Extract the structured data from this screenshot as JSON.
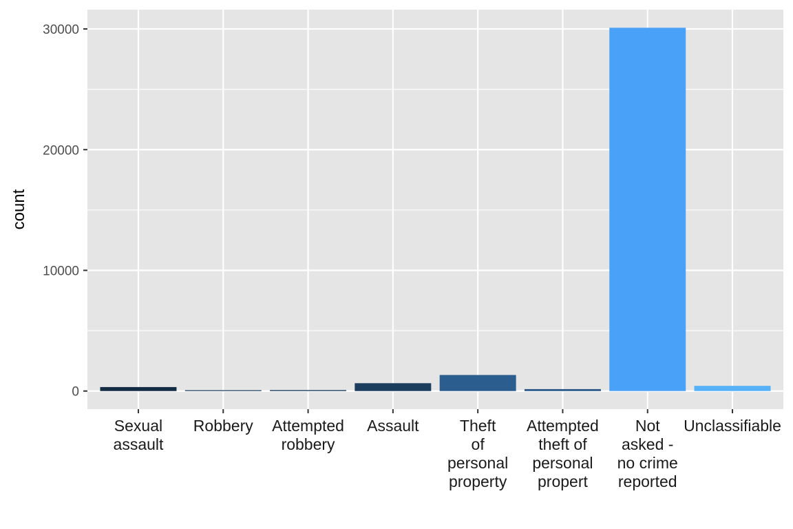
{
  "chart_data": {
    "type": "bar",
    "title": "",
    "xlabel": "",
    "ylabel": "count",
    "categories": [
      [
        "Sexual",
        "assault"
      ],
      [
        "Robbery"
      ],
      [
        "Attempted",
        "robbery"
      ],
      [
        "Assault"
      ],
      [
        "Theft",
        "of",
        "personal",
        "property"
      ],
      [
        "Attempted",
        "theft of",
        "personal",
        "propert"
      ],
      [
        "Not",
        "asked -",
        "no crime",
        "reported"
      ],
      [
        "Unclassifiable"
      ]
    ],
    "values": [
      330,
      70,
      80,
      650,
      1330,
      160,
      30100,
      430
    ],
    "colors": [
      "#132b43",
      "#1c3a5a",
      "#1e3f61",
      "#1d3d5e",
      "#2c5d8f",
      "#285686",
      "#4aa2f8",
      "#56b1f7"
    ],
    "ylim": [
      -1500,
      31600
    ],
    "yticks": [
      0,
      10000,
      20000,
      30000
    ],
    "grid": true,
    "legend": "none",
    "panel_background": "#e5e5e5",
    "grid_color": "#ffffff"
  }
}
